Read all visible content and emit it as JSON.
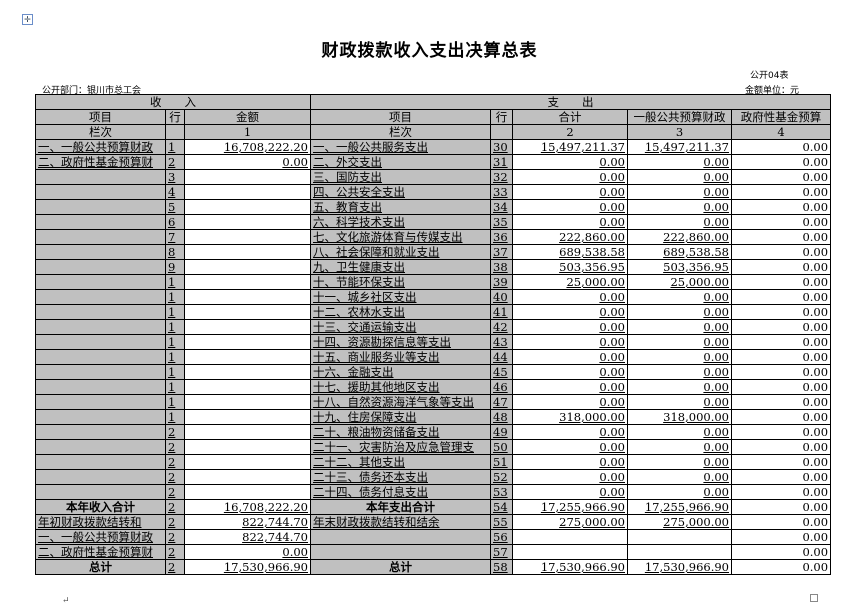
{
  "title": "财政拨款收入支出决算总表",
  "table_no": "公开04表",
  "department": "公开部门：银川市总工会",
  "unit": "金额单位：元",
  "header": {
    "income": "收　　入",
    "expense": "支　　出",
    "item": "项目",
    "line": "行",
    "amount": "金额",
    "total": "合计",
    "general_budget": "一般公共预算财政",
    "fund_budget": "政府性基金预算",
    "column_index": "栏次",
    "col1": "1",
    "col2": "2",
    "col3": "3",
    "col4": "4"
  },
  "rows": [
    [
      "一、一般公共预算财政",
      "1",
      "16,708,222.20",
      "一、一般公共服务支出",
      "30",
      "15,497,211.37",
      "15,497,211.37",
      "0.00"
    ],
    [
      "二、政府性基金预算财",
      "2",
      "0.00",
      "二、外交支出",
      "31",
      "0.00",
      "0.00",
      "0.00"
    ],
    [
      "",
      "3",
      "",
      "三、国防支出",
      "32",
      "0.00",
      "0.00",
      "0.00"
    ],
    [
      "",
      "4",
      "",
      "四、公共安全支出",
      "33",
      "0.00",
      "0.00",
      "0.00"
    ],
    [
      "",
      "5",
      "",
      "五、教育支出",
      "34",
      "0.00",
      "0.00",
      "0.00"
    ],
    [
      "",
      "6",
      "",
      "六、科学技术支出",
      "35",
      "0.00",
      "0.00",
      "0.00"
    ],
    [
      "",
      "7",
      "",
      "七、文化旅游体育与传媒支出",
      "36",
      "222,860.00",
      "222,860.00",
      "0.00"
    ],
    [
      "",
      "8",
      "",
      "八、社会保障和就业支出",
      "37",
      "689,538.58",
      "689,538.58",
      "0.00"
    ],
    [
      "",
      "9",
      "",
      "九、卫生健康支出",
      "38",
      "503,356.95",
      "503,356.95",
      "0.00"
    ],
    [
      "",
      "1",
      "",
      "十、节能环保支出",
      "39",
      "25,000.00",
      "25,000.00",
      "0.00"
    ],
    [
      "",
      "1",
      "",
      "十一、城乡社区支出",
      "40",
      "0.00",
      "0.00",
      "0.00"
    ],
    [
      "",
      "1",
      "",
      "十二、农林水支出",
      "41",
      "0.00",
      "0.00",
      "0.00"
    ],
    [
      "",
      "1",
      "",
      "十三、交通运输支出",
      "42",
      "0.00",
      "0.00",
      "0.00"
    ],
    [
      "",
      "1",
      "",
      "十四、资源勘探信息等支出",
      "43",
      "0.00",
      "0.00",
      "0.00"
    ],
    [
      "",
      "1",
      "",
      "十五、商业服务业等支出",
      "44",
      "0.00",
      "0.00",
      "0.00"
    ],
    [
      "",
      "1",
      "",
      "十六、金融支出",
      "45",
      "0.00",
      "0.00",
      "0.00"
    ],
    [
      "",
      "1",
      "",
      "十七、援助其他地区支出",
      "46",
      "0.00",
      "0.00",
      "0.00"
    ],
    [
      "",
      "1",
      "",
      "十八、自然资源海洋气象等支出",
      "47",
      "0.00",
      "0.00",
      "0.00"
    ],
    [
      "",
      "1",
      "",
      "十九、住房保障支出",
      "48",
      "318,000.00",
      "318,000.00",
      "0.00"
    ],
    [
      "",
      "2",
      "",
      "二十、粮油物资储备支出",
      "49",
      "0.00",
      "0.00",
      "0.00"
    ],
    [
      "",
      "2",
      "",
      "二十一、灾害防治及应急管理支",
      "50",
      "0.00",
      "0.00",
      "0.00"
    ],
    [
      "",
      "2",
      "",
      "二十二、其他支出",
      "51",
      "0.00",
      "0.00",
      "0.00"
    ],
    [
      "",
      "2",
      "",
      "二十三、债务还本支出",
      "52",
      "0.00",
      "0.00",
      "0.00"
    ],
    [
      "",
      "2",
      "",
      "二十四、债务付息支出",
      "53",
      "0.00",
      "0.00",
      "0.00"
    ],
    [
      "本年收入合计",
      "2",
      "16,708,222.20",
      "本年支出合计",
      "54",
      "17,255,966.90",
      "17,255,966.90",
      "0.00"
    ],
    [
      "年初财政拨款结转和",
      "2",
      "822,744.70",
      "年末财政拨款结转和结余",
      "55",
      "275,000.00",
      "275,000.00",
      "0.00"
    ],
    [
      "一、一般公共预算财政",
      "2",
      "822,744.70",
      "",
      "56",
      "",
      "",
      "0.00"
    ],
    [
      "二、政府性基金预算财",
      "2",
      "0.00",
      "",
      "57",
      "",
      "",
      "0.00"
    ],
    [
      "总计",
      "2",
      "17,530,966.90",
      "总计",
      "58",
      "17,530,966.90",
      "17,530,966.90",
      "0.00"
    ]
  ]
}
